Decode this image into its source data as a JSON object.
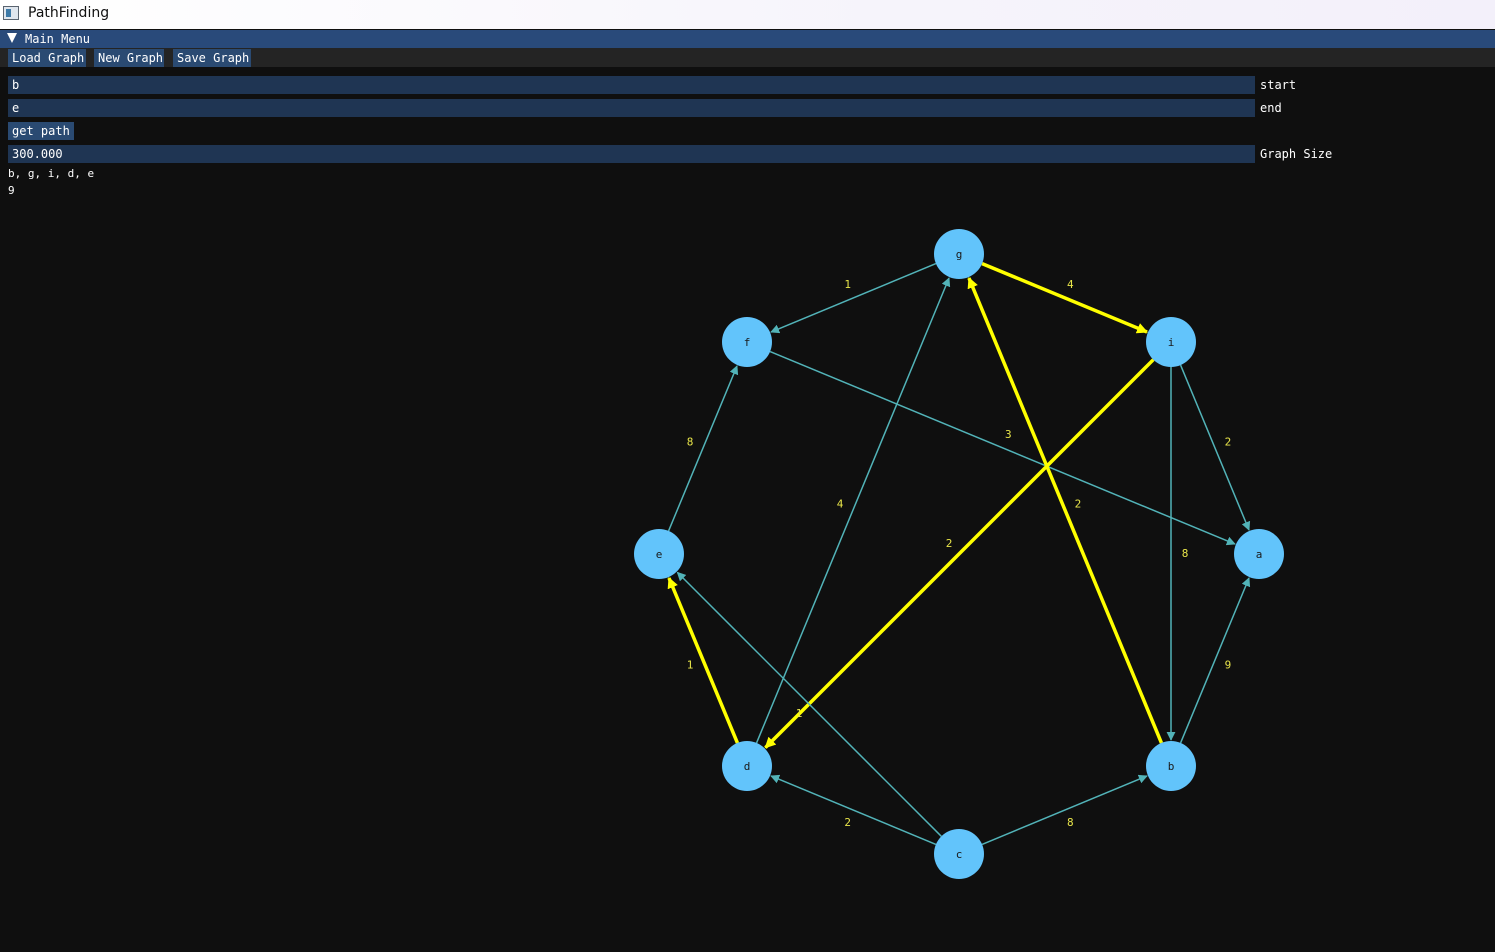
{
  "window": {
    "title": "PathFinding"
  },
  "panel": {
    "title": "Main Menu"
  },
  "menu": {
    "load_label": "Load Graph",
    "new_label": "New Graph",
    "save_label": "Save Graph"
  },
  "form": {
    "start_value": "b",
    "start_label": "start",
    "end_value": "e",
    "end_label": "end",
    "get_path_label": "get path",
    "graph_size_value": "300.000",
    "graph_size_label": "Graph Size"
  },
  "result": {
    "path": "b, g, i, d, e",
    "cost": "9"
  },
  "colors": {
    "background": "#0f0f0f",
    "node_fill": "#62c4fb",
    "edge": "#52b3b8",
    "path_edge": "#ffff00",
    "edge_label": "#e8e54a",
    "button": "#2a4a72",
    "input": "#1f3553",
    "header": "#294a7a"
  },
  "graph": {
    "nodes": [
      "a",
      "b",
      "c",
      "d",
      "e",
      "f",
      "g",
      "i"
    ],
    "edges": [
      {
        "from": "g",
        "to": "f",
        "weight": "1",
        "on_path": false
      },
      {
        "from": "g",
        "to": "i",
        "weight": "4",
        "on_path": true
      },
      {
        "from": "i",
        "to": "a",
        "weight": "2",
        "on_path": false
      },
      {
        "from": "i",
        "to": "b",
        "weight": "8",
        "on_path": false
      },
      {
        "from": "i",
        "to": "d",
        "weight": "2",
        "on_path": true
      },
      {
        "from": "f",
        "to": "a",
        "weight": "3",
        "on_path": false
      },
      {
        "from": "b",
        "to": "g",
        "weight": "2",
        "on_path": true
      },
      {
        "from": "b",
        "to": "a",
        "weight": "9",
        "on_path": false
      },
      {
        "from": "c",
        "to": "b",
        "weight": "8",
        "on_path": false
      },
      {
        "from": "c",
        "to": "d",
        "weight": "2",
        "on_path": false
      },
      {
        "from": "c",
        "to": "e",
        "weight": "1",
        "on_path": false
      },
      {
        "from": "d",
        "to": "g",
        "weight": "4",
        "on_path": false
      },
      {
        "from": "d",
        "to": "e",
        "weight": "1",
        "on_path": true
      },
      {
        "from": "e",
        "to": "f",
        "weight": "8",
        "on_path": false
      }
    ]
  }
}
